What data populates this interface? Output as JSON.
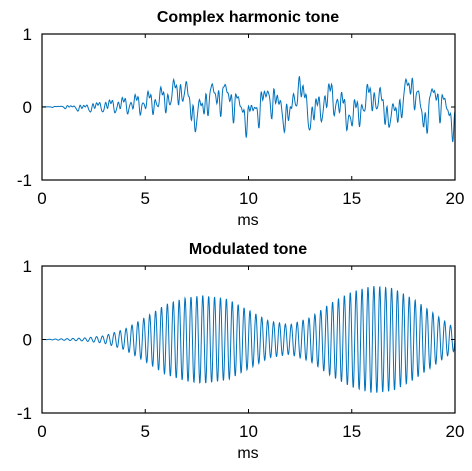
{
  "chart_data": [
    {
      "type": "line",
      "title": "Complex harmonic tone",
      "xlabel": "ms",
      "ylabel": "",
      "xlim": [
        0,
        20
      ],
      "ylim": [
        -1,
        1
      ],
      "xticks": [
        "0",
        "5",
        "10",
        "15",
        "20"
      ],
      "yticks": [
        "-1",
        "0",
        "1"
      ],
      "grid": false,
      "legend": "none",
      "line_color": "#0072BD",
      "series": [
        {
          "x": [
            0,
            1,
            2,
            3,
            4,
            5,
            6,
            6.8,
            7.5,
            8,
            9,
            10,
            11,
            12,
            12.4,
            13,
            14,
            15,
            16,
            17,
            17.9,
            18.5,
            19,
            20
          ],
          "y": [
            0.0,
            0.01,
            -0.02,
            0.03,
            0.06,
            0.1,
            0.2,
            0.47,
            -0.3,
            0.25,
            0.3,
            -0.25,
            0.3,
            -0.3,
            0.6,
            -0.25,
            0.3,
            -0.28,
            0.32,
            -0.3,
            0.63,
            -0.35,
            0.35,
            -0.38
          ]
        }
      ]
    },
    {
      "type": "line",
      "title": "Modulated tone",
      "xlabel": "ms",
      "ylabel": "",
      "xlim": [
        0,
        20
      ],
      "ylim": [
        -1,
        1
      ],
      "xticks": [
        "0",
        "5",
        "10",
        "15",
        "20"
      ],
      "yticks": [
        "-1",
        "0",
        "1"
      ],
      "grid": false,
      "legend": "none",
      "line_color": "#0072BD",
      "series": [
        {
          "envelope_x": [
            0,
            1,
            2,
            3,
            4,
            5,
            6,
            7,
            7.8,
            9,
            10,
            11,
            12,
            13,
            14,
            15,
            16,
            17,
            18,
            19,
            20
          ],
          "envelope_y": [
            0.0,
            0.01,
            0.02,
            0.05,
            0.14,
            0.3,
            0.48,
            0.57,
            0.6,
            0.55,
            0.4,
            0.25,
            0.2,
            0.3,
            0.5,
            0.65,
            0.73,
            0.7,
            0.55,
            0.35,
            0.15
          ],
          "cycles_per_ms": 3.5
        }
      ]
    }
  ]
}
